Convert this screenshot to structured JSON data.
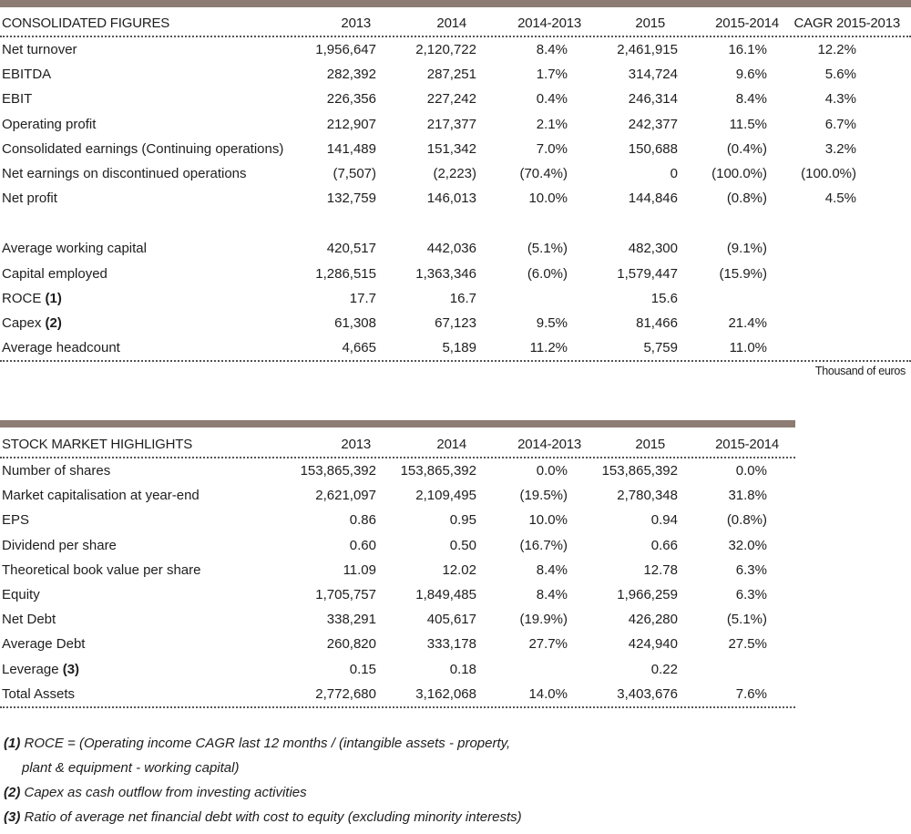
{
  "consolidated": {
    "headers": [
      "CONSOLIDATED FIGURES",
      "2013",
      "2014",
      "2014-2013",
      "2015",
      "2015-2014",
      "CAGR 2015-2013"
    ],
    "group1": [
      {
        "label": "Net turnover",
        "ref": "",
        "values": [
          "1,956,647",
          "2,120,722",
          "8.4%",
          "2,461,915",
          "16.1%",
          "12.2%"
        ]
      },
      {
        "label": "EBITDA",
        "ref": "",
        "values": [
          "282,392",
          "287,251",
          "1.7%",
          "314,724",
          "9.6%",
          "5.6%"
        ]
      },
      {
        "label": "EBIT",
        "ref": "",
        "values": [
          "226,356",
          "227,242",
          "0.4%",
          "246,314",
          "8.4%",
          "4.3%"
        ]
      },
      {
        "label": "Operating profit",
        "ref": "",
        "values": [
          "212,907",
          "217,377",
          "2.1%",
          "242,377",
          "11.5%",
          "6.7%"
        ]
      },
      {
        "label": " Consolidated earnings (Continuing operations)",
        "ref": "",
        "values": [
          "141,489",
          "151,342",
          "7.0%",
          "150,688",
          "(0.4%)",
          "3.2%"
        ]
      },
      {
        "label": "Net earnings on discontinued operations",
        "ref": "",
        "values": [
          "(7,507)",
          "(2,223)",
          "(70.4%)",
          "0",
          "(100.0%)",
          "(100.0%)"
        ]
      },
      {
        "label": "Net profit",
        "ref": "",
        "values": [
          "132,759",
          "146,013",
          "10.0%",
          "144,846",
          "(0.8%)",
          "4.5%"
        ]
      }
    ],
    "group2": [
      {
        "label": "Average working capital",
        "ref": "",
        "values": [
          "420,517",
          "442,036",
          "(5.1%)",
          "482,300",
          "(9.1%)",
          ""
        ]
      },
      {
        "label": "Capital employed",
        "ref": "",
        "values": [
          "1,286,515",
          "1,363,346",
          "(6.0%)",
          "1,579,447",
          "(15.9%)",
          ""
        ]
      },
      {
        "label": "ROCE ",
        "ref": "(1)",
        "values": [
          "17.7",
          "16.7",
          "",
          "15.6",
          "",
          ""
        ]
      },
      {
        "label": "Capex ",
        "ref": "(2)",
        "values": [
          "61,308",
          "67,123",
          "9.5%",
          "81,466",
          "21.4%",
          ""
        ]
      },
      {
        "label": "Average headcount",
        "ref": "",
        "values": [
          "4,665",
          "5,189",
          "11.2%",
          "5,759",
          "11.0%",
          ""
        ]
      }
    ],
    "unit_note": "Thousand of euros"
  },
  "stock": {
    "headers": [
      "STOCK MARKET HIGHLIGHTS",
      "2013",
      "2014",
      "2014-2013",
      "2015",
      "2015-2014"
    ],
    "rows": [
      {
        "label": "Number of shares",
        "ref": "",
        "values": [
          "153,865,392",
          "153,865,392",
          "0.0%",
          "153,865,392",
          "0.0%"
        ]
      },
      {
        "label": "Market capitalisation at year-end",
        "ref": "",
        "values": [
          "2,621,097",
          "2,109,495",
          "(19.5%)",
          "2,780,348",
          "31.8%"
        ]
      },
      {
        "label": "EPS",
        "ref": "",
        "values": [
          "0.86",
          "0.95",
          "10.0%",
          "0.94",
          "(0.8%)"
        ]
      },
      {
        "label": "Dividend per share",
        "ref": "",
        "values": [
          "0.60",
          "0.50",
          "(16.7%)",
          "0.66",
          "32.0%"
        ]
      },
      {
        "label": "Theoretical book value per share",
        "ref": "",
        "values": [
          "11.09",
          "12.02",
          "8.4%",
          "12.78",
          "6.3%"
        ]
      },
      {
        "label": "Equity",
        "ref": "",
        "values": [
          "1,705,757",
          "1,849,485",
          "8.4%",
          "1,966,259",
          "6.3%"
        ]
      },
      {
        "label": "Net Debt",
        "ref": "",
        "values": [
          "338,291",
          "405,617",
          "(19.9%)",
          "426,280",
          "(5.1%)"
        ]
      },
      {
        "label": "Average Debt",
        "ref": "",
        "values": [
          "260,820",
          "333,178",
          "27.7%",
          "424,940",
          "27.5%"
        ]
      },
      {
        "label": "Leverage ",
        "ref": "(3)",
        "values": [
          "0.15",
          "0.18",
          "",
          "0.22",
          ""
        ]
      },
      {
        "label": "Total Assets",
        "ref": "",
        "values": [
          "2,772,680",
          "3,162,068",
          "14.0%",
          "3,403,676",
          "7.6%"
        ]
      }
    ]
  },
  "footnotes": [
    {
      "mark": "(1)",
      "text": " ROCE = (Operating income CAGR last 12 months / (intangible assets - property,"
    },
    {
      "mark": "",
      "text": "plant & equipment - working capital)"
    },
    {
      "mark": "(2)",
      "text": " Capex as cash outflow from investing activities"
    },
    {
      "mark": "(3)",
      "text": " Ratio of average net financial debt with cost to equity (excluding minority interests)"
    }
  ],
  "colors": {
    "accent_bar": "#8c7c73",
    "text": "#1e1e1e"
  }
}
